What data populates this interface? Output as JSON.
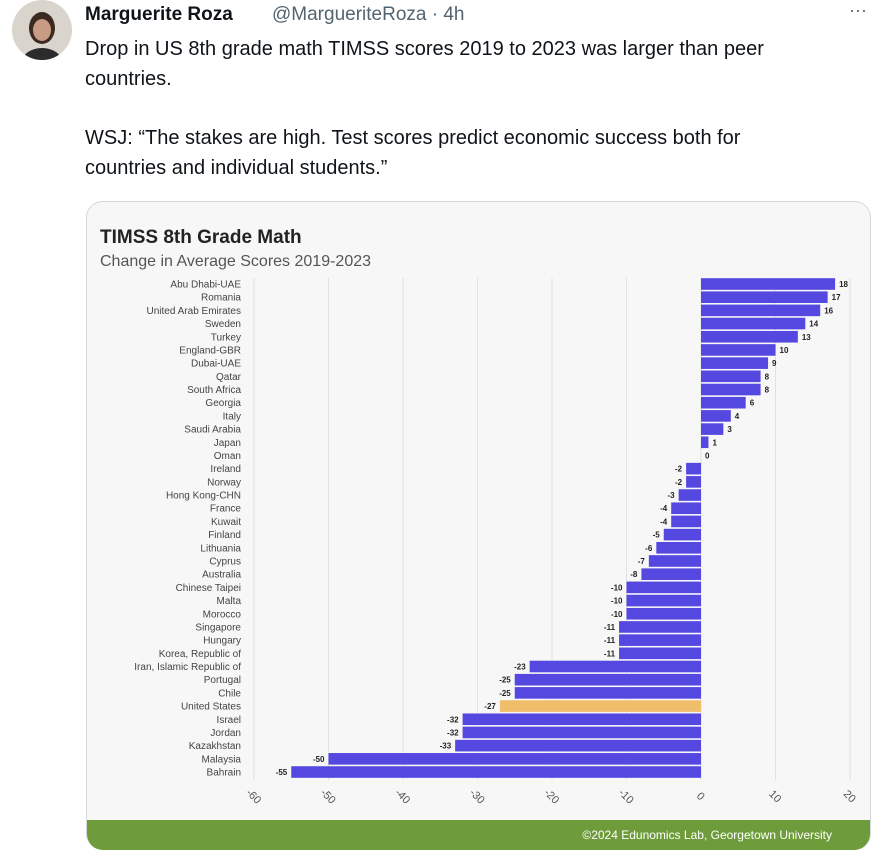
{
  "tweet": {
    "name": "Marguerite Roza",
    "meta": "@MargueriteRoza · 4h",
    "menu": "···",
    "lines": [
      "Drop in US 8th grade math TIMSS scores 2019 to 2023 was larger than peer",
      "countries.",
      "WSJ: “The stakes are high. Test scores predict economic success both for",
      "countries and individual students.”"
    ]
  },
  "chart_data": {
    "type": "hbar",
    "title": "TIMSS 8th Grade Math",
    "subtitle": "Change in Average Scores 2019-2023",
    "categories": [
      "Abu Dhabi-UAE",
      "Romania",
      "United Arab Emirates",
      "Sweden",
      "Turkey",
      "England-GBR",
      "Dubai-UAE",
      "Qatar",
      "South Africa",
      "Georgia",
      "Italy",
      "Saudi Arabia",
      "Japan",
      "Oman",
      "Ireland",
      "Norway",
      "Hong Kong-CHN",
      "France",
      "Kuwait",
      "Finland",
      "Lithuania",
      "Cyprus",
      "Australia",
      "Chinese Taipei",
      "Malta",
      "Morocco",
      "Singapore",
      "Hungary",
      "Korea, Republic of",
      "Iran, Islamic Republic of",
      "Portugal",
      "Chile",
      "United States",
      "Israel",
      "Jordan",
      "Kazakhstan",
      "Malaysia",
      "Bahrain"
    ],
    "values": [
      18,
      17,
      16,
      14,
      13,
      10,
      9,
      8,
      8,
      6,
      4,
      3,
      1,
      0,
      -2,
      -2,
      -3,
      -4,
      -4,
      -5,
      -6,
      -7,
      -8,
      -10,
      -10,
      -10,
      -11,
      -11,
      -11,
      -23,
      -25,
      -25,
      -27,
      -32,
      -32,
      -33,
      -50,
      -55
    ],
    "colors": [
      "#5548e0",
      "#5548e0",
      "#5548e0",
      "#5548e0",
      "#5548e0",
      "#5548e0",
      "#5548e0",
      "#5548e0",
      "#5548e0",
      "#5548e0",
      "#5548e0",
      "#5548e0",
      "#5548e0",
      "#5548e0",
      "#5548e0",
      "#5548e0",
      "#5548e0",
      "#5548e0",
      "#5548e0",
      "#5548e0",
      "#5548e0",
      "#5548e0",
      "#5548e0",
      "#5548e0",
      "#5548e0",
      "#5548e0",
      "#5548e0",
      "#5548e0",
      "#5548e0",
      "#5548e0",
      "#5548e0",
      "#5548e0",
      "#f0bd6a",
      "#5548e0",
      "#5548e0",
      "#5548e0",
      "#5548e0",
      "#5548e0"
    ],
    "xlim": [
      -60,
      20
    ],
    "xticks": [
      -60,
      -50,
      -40,
      -30,
      -20,
      -10,
      0,
      10,
      20
    ],
    "grid": true,
    "footer": "©2024 Edunomics Lab, Georgetown University"
  }
}
